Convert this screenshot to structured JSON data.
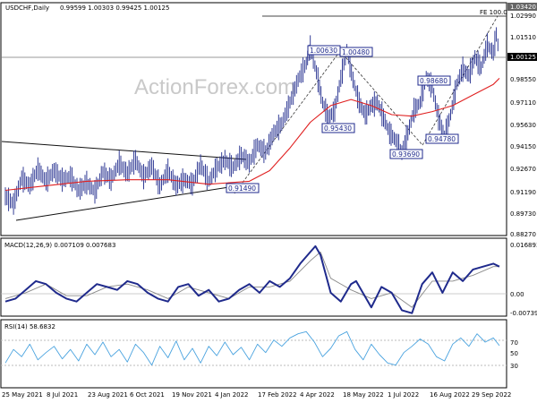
{
  "chart_data": [
    {
      "type": "candlestick",
      "title": "USDCHF,Daily",
      "ohlc_readout": "0.99599 1.00303 0.99425 1.00125",
      "y_ticks": [
        "1.02990",
        "1.01510",
        "1.00125",
        "0.98550",
        "0.97110",
        "0.95630",
        "0.94150",
        "0.92670",
        "0.91190",
        "0.89730",
        "0.88270"
      ],
      "current_price_label": "1.00125",
      "high_price_label": "1.03420",
      "fe_label": "FE 100.0",
      "x_labels": [
        "25 May 2021",
        "8 Jul 2021",
        "23 Aug 2021",
        "6 Oct 2021",
        "19 Nov 2021",
        "4 Jan 2022",
        "17 Feb 2022",
        "4 Apr 2022",
        "18 May 2022",
        "1 Jul 2022",
        "16 Aug 2022",
        "29 Sep 2022"
      ],
      "annotations": [
        "1.00630",
        "1.00480",
        "0.98680",
        "0.95430",
        "0.94780",
        "0.93690",
        "0.91490"
      ],
      "series": [
        {
          "points": [
            [
              0,
              0.908
            ],
            [
              8,
              0.903
            ],
            [
              16,
              0.92
            ],
            [
              24,
              0.915
            ],
            [
              32,
              0.926
            ],
            [
              40,
              0.918
            ],
            [
              48,
              0.925
            ],
            [
              56,
              0.919
            ],
            [
              64,
              0.921
            ],
            [
              72,
              0.912
            ],
            [
              80,
              0.917
            ],
            [
              88,
              0.911
            ],
            [
              96,
              0.924
            ],
            [
              104,
              0.919
            ],
            [
              112,
              0.93
            ],
            [
              120,
              0.923
            ],
            [
              128,
              0.932
            ],
            [
              136,
              0.921
            ],
            [
              144,
              0.928
            ],
            [
              152,
              0.915
            ],
            [
              160,
              0.925
            ],
            [
              168,
              0.915
            ],
            [
              176,
              0.919
            ],
            [
              184,
              0.916
            ],
            [
              192,
              0.929
            ],
            [
              200,
              0.918
            ],
            [
              208,
              0.927
            ],
            [
              216,
              0.932
            ],
            [
              224,
              0.927
            ],
            [
              232,
              0.935
            ],
            [
              240,
              0.93
            ],
            [
              248,
              0.942
            ],
            [
              256,
              0.937
            ],
            [
              264,
              0.95
            ],
            [
              272,
              0.956
            ],
            [
              280,
              0.97
            ],
            [
              288,
              0.985
            ],
            [
              296,
              0.996
            ],
            [
              300,
              1.0063
            ],
            [
              306,
              0.99
            ],
            [
              312,
              0.97
            ],
            [
              318,
              0.96
            ],
            [
              324,
              0.965
            ],
            [
              330,
              0.986
            ],
            [
              336,
              1.0048
            ],
            [
              342,
              0.985
            ],
            [
              348,
              0.97
            ],
            [
              354,
              0.962
            ],
            [
              360,
              0.968
            ],
            [
              366,
              0.97
            ],
            [
              372,
              0.96
            ],
            [
              378,
              0.95
            ],
            [
              384,
              0.945
            ],
            [
              390,
              0.9369
            ],
            [
              396,
              0.95
            ],
            [
              402,
              0.965
            ],
            [
              408,
              0.97
            ],
            [
              414,
              0.9868
            ],
            [
              420,
              0.98
            ],
            [
              426,
              0.96
            ],
            [
              432,
              0.9478
            ],
            [
              438,
              0.962
            ],
            [
              444,
              0.982
            ],
            [
              450,
              0.992
            ],
            [
              456,
              0.988
            ],
            [
              462,
              1.0
            ],
            [
              468,
              0.993
            ],
            [
              474,
              1.008
            ],
            [
              480,
              1.003
            ],
            [
              483,
              1.015
            ],
            [
              486,
              1.0012
            ]
          ]
        },
        {
          "name": "MA",
          "points": [
            [
              0,
              0.912
            ],
            [
              40,
              0.915
            ],
            [
              80,
              0.918
            ],
            [
              120,
              0.919
            ],
            [
              160,
              0.919
            ],
            [
              200,
              0.916
            ],
            [
              240,
              0.918
            ],
            [
              260,
              0.925
            ],
            [
              280,
              0.94
            ],
            [
              300,
              0.957
            ],
            [
              320,
              0.968
            ],
            [
              340,
              0.972
            ],
            [
              360,
              0.968
            ],
            [
              380,
              0.962
            ],
            [
              400,
              0.961
            ],
            [
              420,
              0.964
            ],
            [
              440,
              0.968
            ],
            [
              460,
              0.975
            ],
            [
              480,
              0.982
            ],
            [
              486,
              0.986
            ]
          ]
        }
      ],
      "ylim": [
        0.8827,
        1.0342
      ]
    },
    {
      "type": "line",
      "title": "MACD(12,26,9) 0.007109 0.007683",
      "y_ticks": [
        "0.016893",
        "0.00",
        "-0.007393"
      ],
      "series": [
        {
          "name": "MACD",
          "points": [
            [
              0,
              -0.003
            ],
            [
              10,
              -0.002
            ],
            [
              20,
              0.001
            ],
            [
              30,
              0.004
            ],
            [
              40,
              0.003
            ],
            [
              50,
              0.0
            ],
            [
              60,
              -0.002
            ],
            [
              70,
              -0.003
            ],
            [
              80,
              0.0
            ],
            [
              90,
              0.003
            ],
            [
              100,
              0.002
            ],
            [
              110,
              0.001
            ],
            [
              120,
              0.004
            ],
            [
              130,
              0.003
            ],
            [
              140,
              0.0
            ],
            [
              150,
              -0.002
            ],
            [
              160,
              -0.003
            ],
            [
              170,
              0.002
            ],
            [
              180,
              0.003
            ],
            [
              190,
              -0.001
            ],
            [
              200,
              0.001
            ],
            [
              210,
              -0.003
            ],
            [
              220,
              -0.002
            ],
            [
              230,
              0.001
            ],
            [
              240,
              0.003
            ],
            [
              250,
              0.0
            ],
            [
              260,
              0.004
            ],
            [
              270,
              0.002
            ],
            [
              280,
              0.005
            ],
            [
              290,
              0.01
            ],
            [
              300,
              0.014
            ],
            [
              305,
              0.016
            ],
            [
              310,
              0.013
            ],
            [
              320,
              0.0
            ],
            [
              330,
              -0.003
            ],
            [
              340,
              0.003
            ],
            [
              345,
              0.004
            ],
            [
              355,
              -0.002
            ],
            [
              360,
              -0.005
            ],
            [
              370,
              0.002
            ],
            [
              380,
              0.0
            ],
            [
              390,
              -0.006
            ],
            [
              400,
              -0.007
            ],
            [
              410,
              0.003
            ],
            [
              420,
              0.007
            ],
            [
              430,
              0.0
            ],
            [
              440,
              0.007
            ],
            [
              450,
              0.004
            ],
            [
              460,
              0.008
            ],
            [
              470,
              0.009
            ],
            [
              480,
              0.01
            ],
            [
              486,
              0.009
            ]
          ]
        },
        {
          "name": "Signal",
          "points": [
            [
              0,
              -0.002
            ],
            [
              20,
              0.0
            ],
            [
              40,
              0.003
            ],
            [
              60,
              -0.001
            ],
            [
              80,
              -0.001
            ],
            [
              100,
              0.002
            ],
            [
              120,
              0.003
            ],
            [
              140,
              0.001
            ],
            [
              160,
              -0.002
            ],
            [
              180,
              0.002
            ],
            [
              200,
              0.0
            ],
            [
              220,
              -0.002
            ],
            [
              240,
              0.002
            ],
            [
              260,
              0.002
            ],
            [
              280,
              0.004
            ],
            [
              300,
              0.011
            ],
            [
              310,
              0.014
            ],
            [
              320,
              0.005
            ],
            [
              340,
              0.001
            ],
            [
              360,
              -0.002
            ],
            [
              380,
              0.0
            ],
            [
              400,
              -0.005
            ],
            [
              420,
              0.004
            ],
            [
              440,
              0.004
            ],
            [
              460,
              0.006
            ],
            [
              480,
              0.009
            ],
            [
              486,
              0.009
            ]
          ]
        }
      ],
      "ylim": [
        -0.0074,
        0.0169
      ]
    },
    {
      "type": "line",
      "title": "RSI(14) 58.6832",
      "y_ticks": [
        "70",
        "50",
        "30"
      ],
      "series": [
        {
          "points": [
            [
              0,
              42
            ],
            [
              8,
              55
            ],
            [
              16,
              48
            ],
            [
              24,
              60
            ],
            [
              32,
              45
            ],
            [
              40,
              52
            ],
            [
              48,
              58
            ],
            [
              56,
              46
            ],
            [
              64,
              55
            ],
            [
              72,
              44
            ],
            [
              80,
              60
            ],
            [
              88,
              50
            ],
            [
              96,
              62
            ],
            [
              104,
              48
            ],
            [
              112,
              55
            ],
            [
              120,
              43
            ],
            [
              128,
              60
            ],
            [
              136,
              52
            ],
            [
              144,
              40
            ],
            [
              152,
              58
            ],
            [
              160,
              47
            ],
            [
              168,
              63
            ],
            [
              176,
              45
            ],
            [
              184,
              56
            ],
            [
              192,
              42
            ],
            [
              200,
              58
            ],
            [
              208,
              49
            ],
            [
              216,
              62
            ],
            [
              224,
              50
            ],
            [
              232,
              57
            ],
            [
              240,
              45
            ],
            [
              248,
              60
            ],
            [
              256,
              52
            ],
            [
              264,
              64
            ],
            [
              272,
              58
            ],
            [
              280,
              66
            ],
            [
              288,
              70
            ],
            [
              296,
              72
            ],
            [
              304,
              62
            ],
            [
              312,
              48
            ],
            [
              320,
              56
            ],
            [
              328,
              68
            ],
            [
              336,
              72
            ],
            [
              344,
              55
            ],
            [
              352,
              45
            ],
            [
              360,
              60
            ],
            [
              368,
              50
            ],
            [
              376,
              42
            ],
            [
              384,
              40
            ],
            [
              392,
              52
            ],
            [
              400,
              58
            ],
            [
              408,
              65
            ],
            [
              416,
              60
            ],
            [
              424,
              48
            ],
            [
              432,
              44
            ],
            [
              440,
              60
            ],
            [
              448,
              66
            ],
            [
              456,
              58
            ],
            [
              464,
              70
            ],
            [
              472,
              62
            ],
            [
              480,
              66
            ],
            [
              486,
              58.7
            ]
          ]
        }
      ],
      "ylim": [
        20,
        80
      ]
    }
  ],
  "watermark": "ActionForex.com",
  "colors": {
    "price_bars": "#1f2a8c",
    "moving_average": "#e02020",
    "macd_line": "#1f2a8c",
    "signal_line": "#8a8a8a",
    "rsi_line": "#4aa3df",
    "box_border": "#1f2a8c"
  }
}
